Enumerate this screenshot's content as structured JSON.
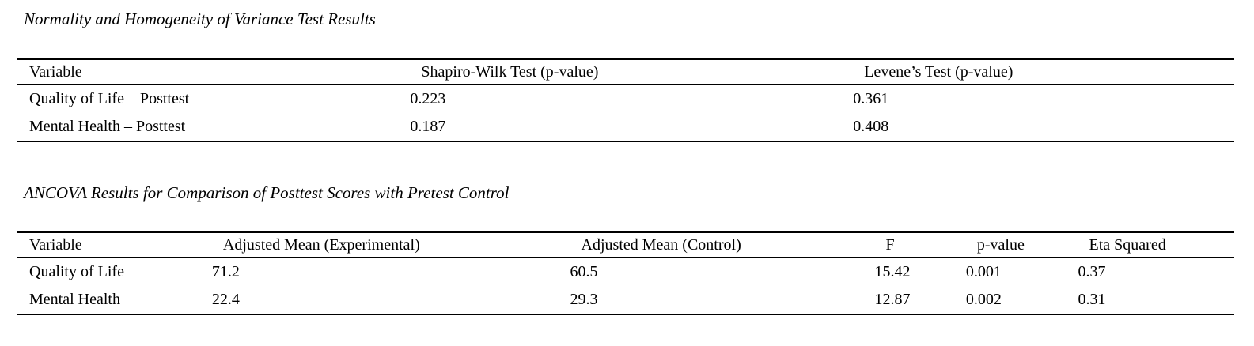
{
  "page": {
    "background_color": "#ffffff",
    "text_color": "#000000"
  },
  "tables": [
    {
      "title": "Normality and Homogeneity of Variance Test Results",
      "columns": [
        "Variable",
        "Shapiro-Wilk Test (p-value)",
        "Levene’s Test (p-value)"
      ],
      "rows": [
        [
          "Quality of Life – Posttest",
          "0.223",
          "0.361"
        ],
        [
          "Mental Health – Posttest",
          "0.187",
          "0.408"
        ]
      ]
    },
    {
      "title": "ANCOVA Results for Comparison of Posttest Scores with Pretest Control",
      "columns": [
        "Variable",
        "Adjusted Mean (Experimental)",
        "Adjusted Mean (Control)",
        "F",
        "p-value",
        "Eta Squared"
      ],
      "rows": [
        [
          "Quality of Life",
          "71.2",
          "60.5",
          "15.42",
          "0.001",
          "0.37"
        ],
        [
          "Mental Health",
          "22.4",
          "29.3",
          "12.87",
          "0.002",
          "0.31"
        ]
      ]
    }
  ]
}
